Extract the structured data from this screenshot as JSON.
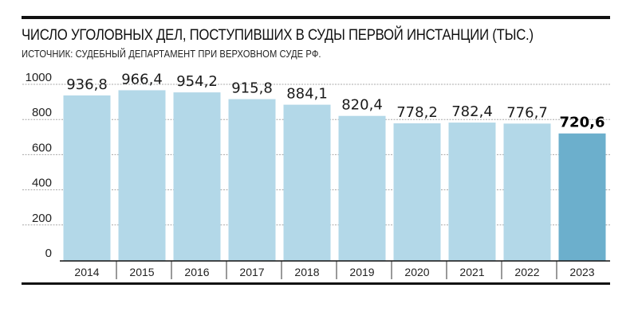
{
  "header": {
    "title": "ЧИСЛО УГОЛОВНЫХ ДЕЛ, ПОСТУПИВШИХ В СУДЫ ПЕРВОЙ ИНСТАНЦИИ (ТЫС.)",
    "source": "ИСТОЧНИК: СУДЕБНЫЙ ДЕПАРТАМЕНТ ПРИ ВЕРХОВНОМ СУДЕ РФ."
  },
  "colors": {
    "bar": "#b3d8e8",
    "bar_highlight": "#6cafcc",
    "gridline": "#a8a8a8",
    "axis": "#111111"
  },
  "chart_data": {
    "type": "bar",
    "title": "ЧИСЛО УГОЛОВНЫХ ДЕЛ, ПОСТУПИВШИХ В СУДЫ ПЕРВОЙ ИНСТАНЦИИ (ТЫС.)",
    "xlabel": "",
    "ylabel": "",
    "categories": [
      "2014",
      "2015",
      "2016",
      "2017",
      "2018",
      "2019",
      "2020",
      "2021",
      "2022",
      "2023"
    ],
    "values": [
      936.8,
      966.4,
      954.2,
      915.8,
      884.1,
      820.4,
      778.2,
      782.4,
      776.7,
      720.6
    ],
    "value_labels": [
      "936,8",
      "966,4",
      "954,2",
      "915,8",
      "884,1",
      "820,4",
      "778,2",
      "782,4",
      "776,7",
      "720,6"
    ],
    "highlight_index": 9,
    "ylim": [
      0,
      1000
    ],
    "yticks": [
      0,
      200,
      400,
      600,
      800,
      1000
    ],
    "grid": true,
    "legend": "none"
  }
}
